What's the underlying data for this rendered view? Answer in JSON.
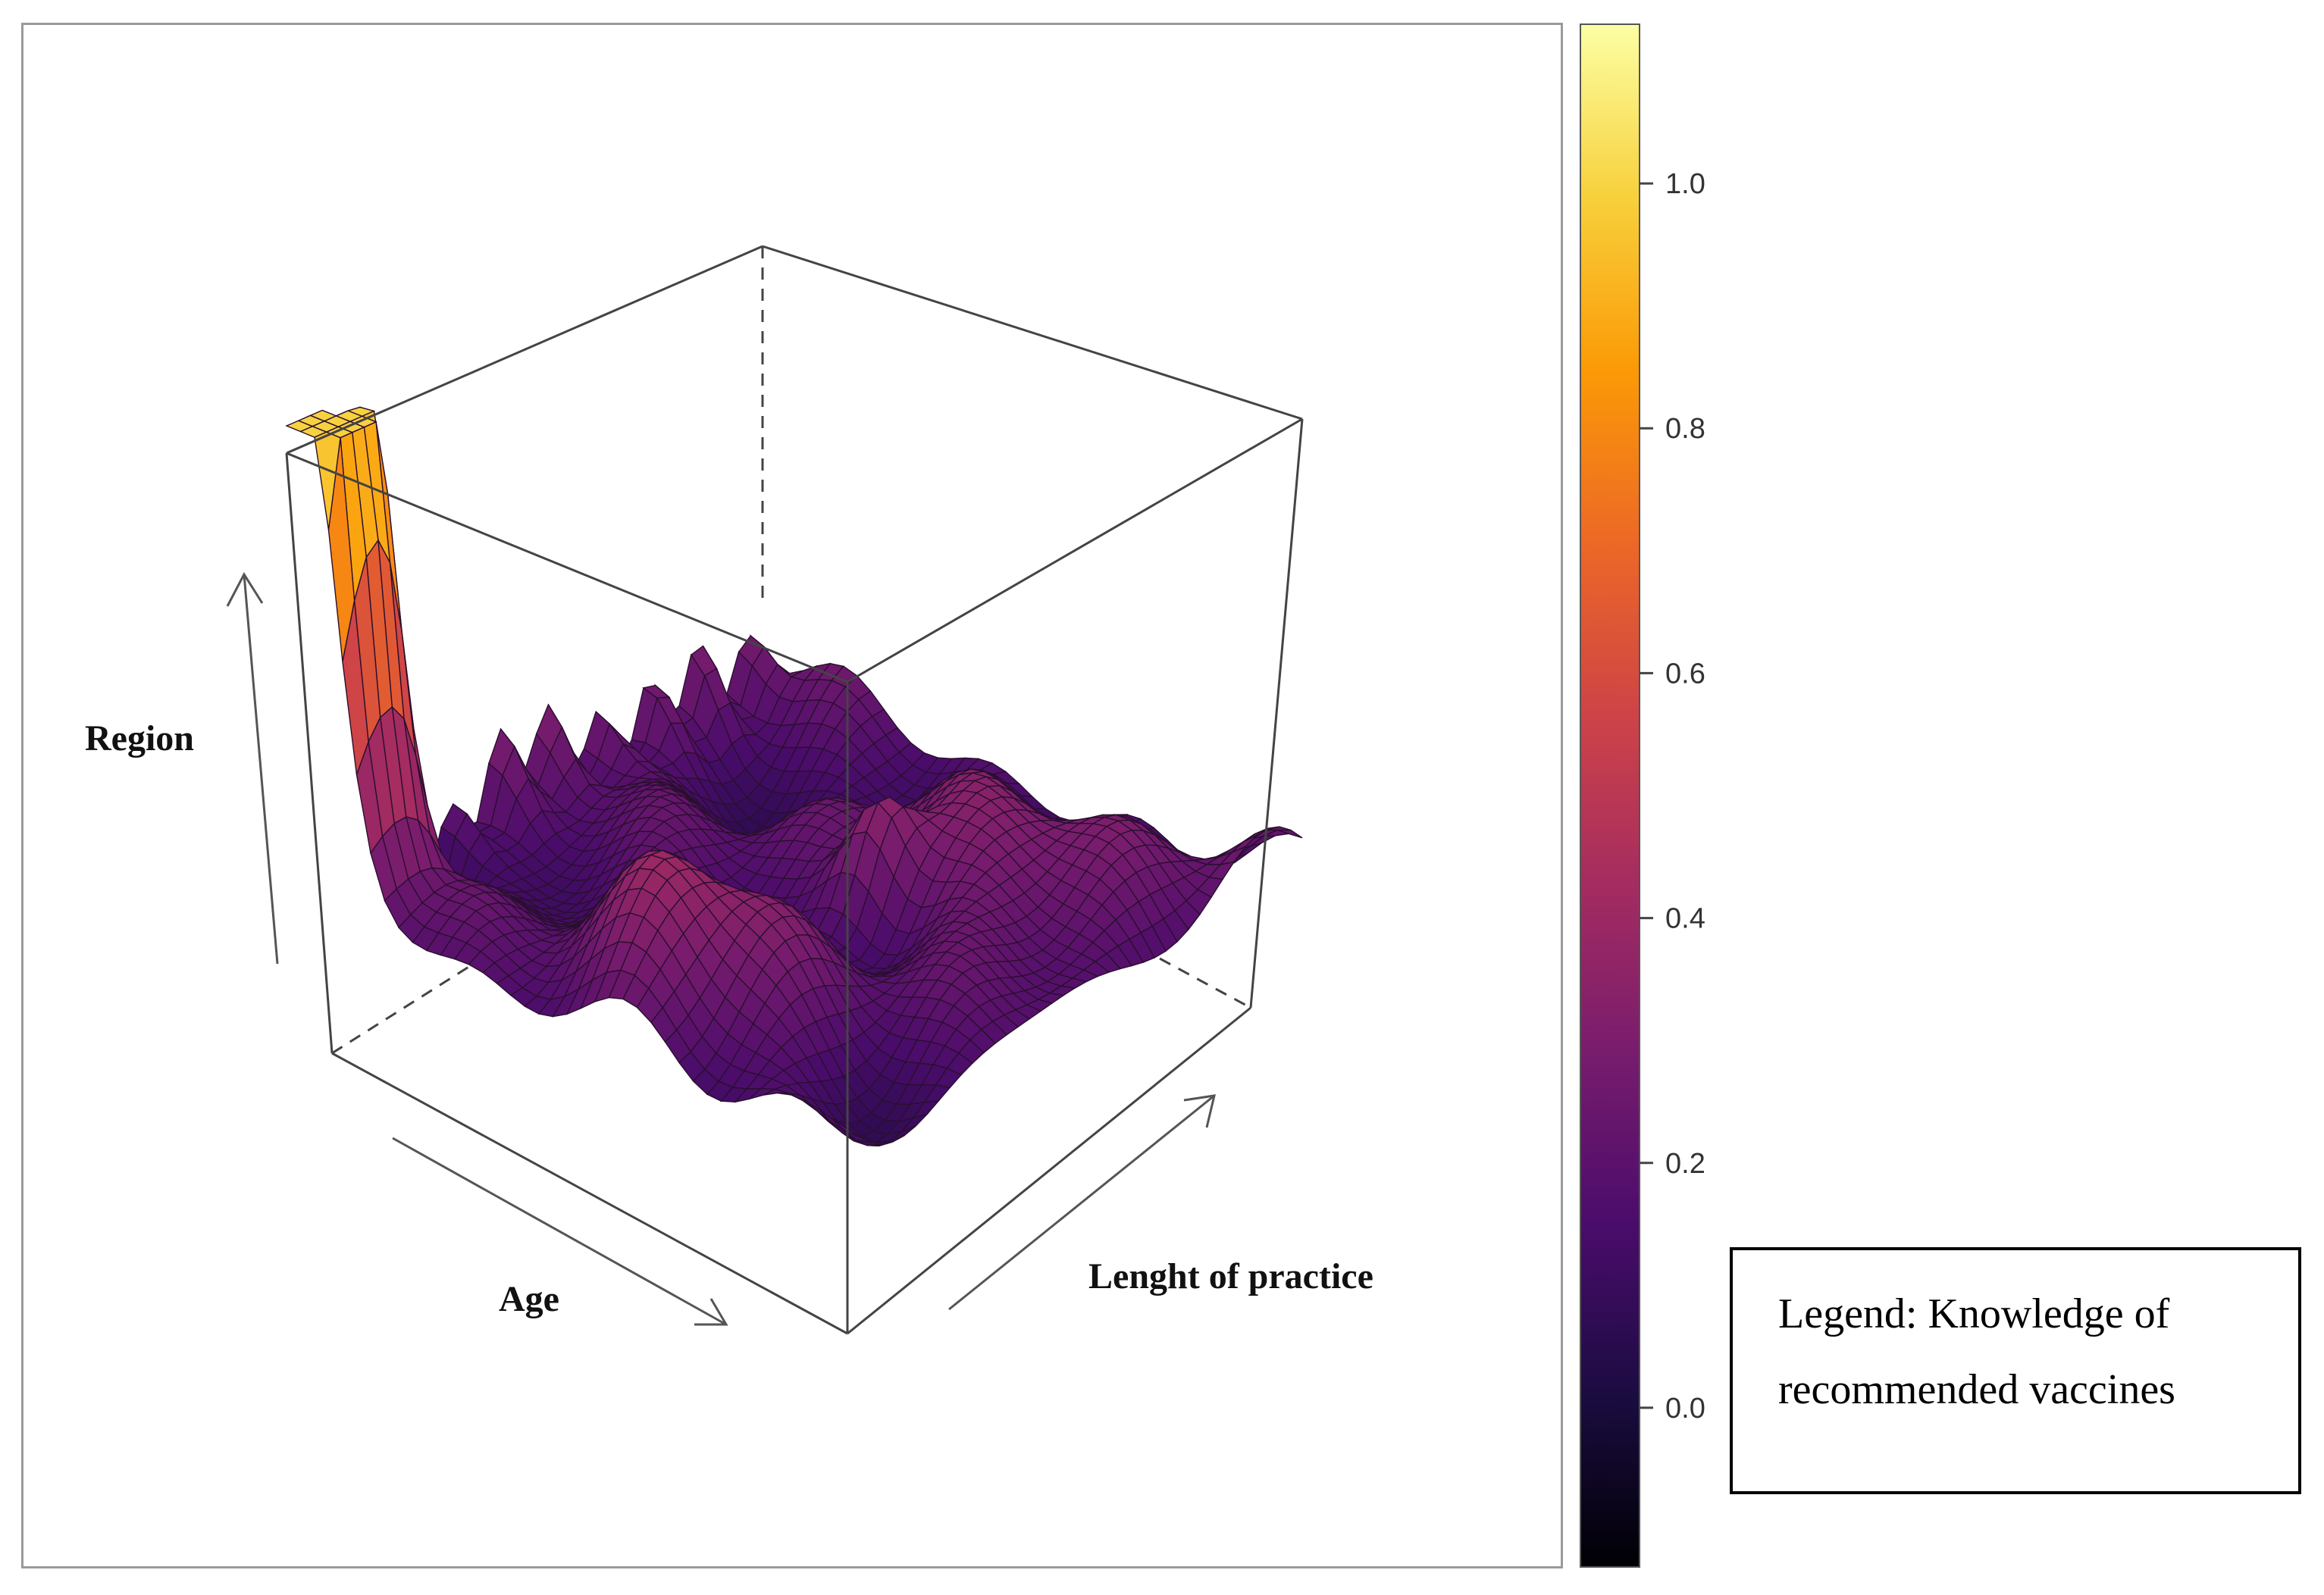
{
  "chart_data": {
    "type": "surface3d",
    "axes": {
      "vertical": "Region",
      "left_depth": "Age",
      "right_depth": "Lenght of practice"
    },
    "colorbar": {
      "ticks": [
        0.0,
        0.2,
        0.4,
        0.6,
        0.8,
        1.0
      ],
      "tick_labels": [
        "0.0",
        "0.2",
        "0.4",
        "0.6",
        "0.8",
        "1.0"
      ],
      "range": [
        -0.13,
        1.13
      ],
      "colormap": "inferno",
      "stops": [
        "#000004",
        "#1b0c41",
        "#4a0c6b",
        "#781c6d",
        "#a52c60",
        "#cf4446",
        "#ed6925",
        "#fb9b06",
        "#f7d13d",
        "#fcffa4"
      ]
    },
    "surface": {
      "rows": 40,
      "cols": 40,
      "grid_color": "#2a0f2e",
      "range": [
        0.0,
        1.08
      ],
      "peaks": [
        {
          "u": 0.02,
          "v": 0.02,
          "value": 1.0,
          "spread": 0.06
        },
        {
          "u": 0.05,
          "v": 0.1,
          "value": 0.9,
          "spread": 0.05
        },
        {
          "u": 0.55,
          "v": 0.15,
          "value": 0.35,
          "spread": 0.12
        },
        {
          "u": 0.6,
          "v": 0.55,
          "value": 0.38,
          "spread": 0.05
        },
        {
          "u": 0.75,
          "v": 0.7,
          "value": 0.3,
          "spread": 0.15
        }
      ]
    }
  },
  "legend": {
    "line1": "Legend: Knowledge of",
    "line2": "recommended vaccines"
  }
}
